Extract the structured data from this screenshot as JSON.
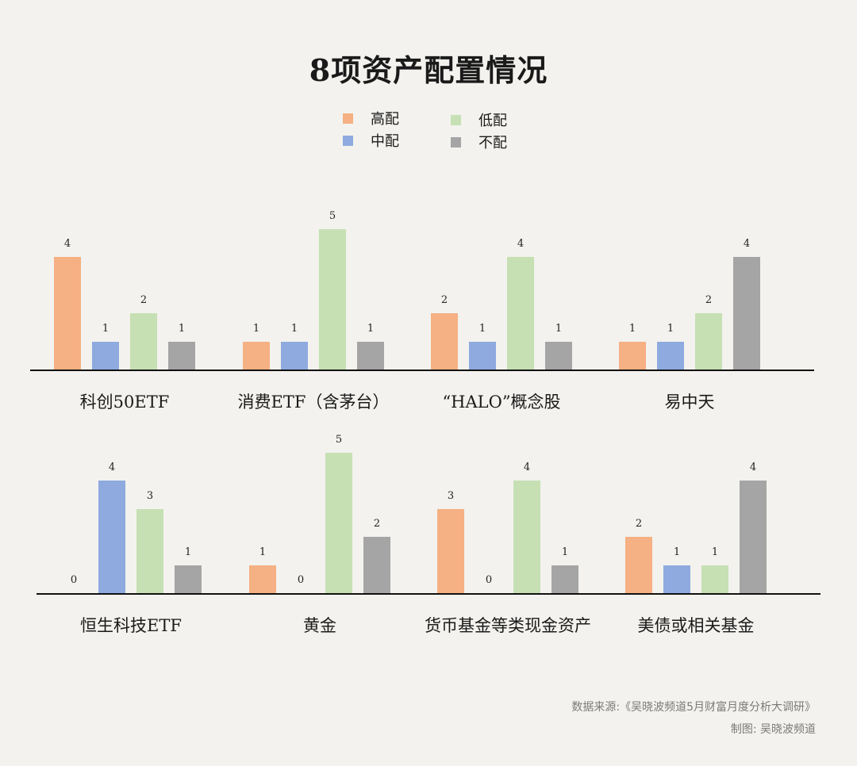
{
  "title": "8项资产配置情况",
  "colors": {
    "高配": "#f5b083",
    "中配": "#8eaadf",
    "低配": "#c6e0b4",
    "不配": "#a5a5a5"
  },
  "legend": [
    {
      "label": "高配",
      "color": "#f5b083"
    },
    {
      "label": "中配",
      "color": "#8eaadf"
    },
    {
      "label": "低配",
      "color": "#c6e0b4"
    },
    {
      "label": "不配",
      "color": "#a5a5a5"
    }
  ],
  "chart_data": {
    "type": "bar",
    "title": "8项资产配置情况",
    "series_names": [
      "高配",
      "中配",
      "低配",
      "不配"
    ],
    "categories": [
      "科创50ETF",
      "消费ETF（含茅台）",
      "“HALO”概念股",
      "易中天",
      "恒生科技ETF",
      "黄金",
      "货币基金等类现金资产",
      "美债或相关基金"
    ],
    "series": [
      {
        "name": "高配",
        "values": [
          4,
          1,
          2,
          1,
          0,
          1,
          3,
          2
        ]
      },
      {
        "name": "中配",
        "values": [
          1,
          1,
          1,
          1,
          4,
          0,
          0,
          1
        ]
      },
      {
        "name": "低配",
        "values": [
          2,
          5,
          4,
          2,
          3,
          5,
          4,
          1
        ]
      },
      {
        "name": "不配",
        "values": [
          1,
          1,
          1,
          4,
          1,
          2,
          1,
          4
        ]
      }
    ],
    "ylim": [
      0,
      5
    ],
    "grid": false,
    "legend_position": "top-center"
  },
  "footer": {
    "source": "数据来源:《吴晓波频道5月财富月度分析大调研》",
    "credit": "制图: 吴晓波频道"
  }
}
